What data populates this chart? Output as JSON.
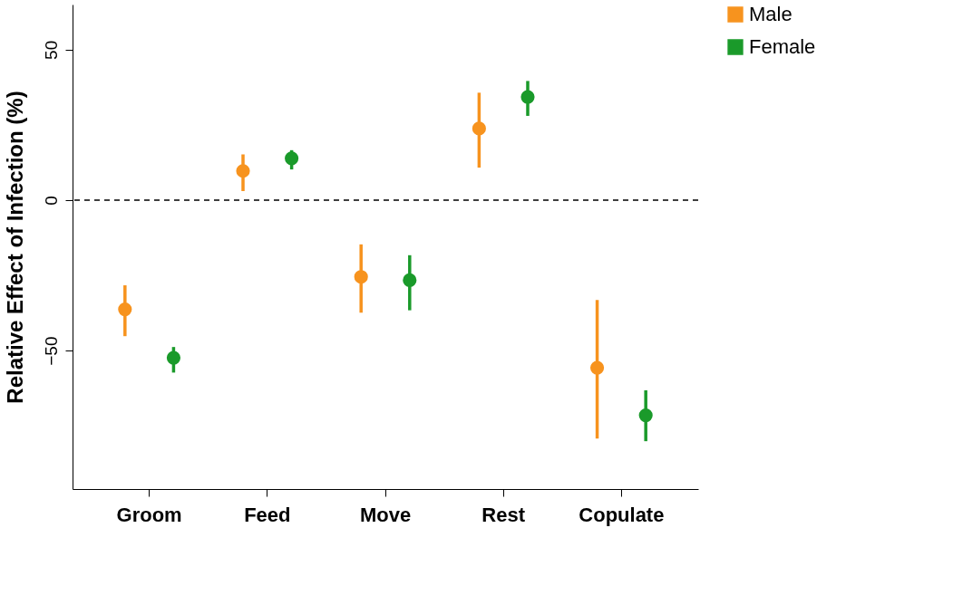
{
  "chart_data": {
    "type": "scatter",
    "ylabel": "Relative Effect of Infection (%)",
    "categories": [
      "Groom",
      "Feed",
      "Move",
      "Rest",
      "Copulate"
    ],
    "series": [
      {
        "name": "Male",
        "color": "#f7931e",
        "values": [
          -36.3,
          9.7,
          -25.5,
          23.8,
          -55.7
        ],
        "errors": [
          [
            -45.2,
            -28.3
          ],
          [
            3.0,
            15.2
          ],
          [
            -37.4,
            -14.7
          ],
          [
            10.8,
            35.7
          ],
          [
            -79.2,
            -33.2
          ]
        ]
      },
      {
        "name": "Female",
        "color": "#1a9a2a",
        "values": [
          -52.4,
          13.9,
          -26.6,
          34.3,
          -71.5
        ],
        "errors": [
          [
            -57.3,
            -48.8
          ],
          [
            10.2,
            16.6
          ],
          [
            -36.6,
            -18.3
          ],
          [
            28.0,
            39.6
          ],
          [
            -80.1,
            -63.2
          ]
        ]
      }
    ],
    "ylim": [
      -96,
      65
    ],
    "yticks": [
      -50,
      0,
      50
    ],
    "grid": false,
    "legend": "top right",
    "marker": "circle",
    "ref_lines": [
      {
        "axis": "y",
        "value": 0,
        "line_style": "dashed",
        "color": "#000000"
      }
    ]
  }
}
